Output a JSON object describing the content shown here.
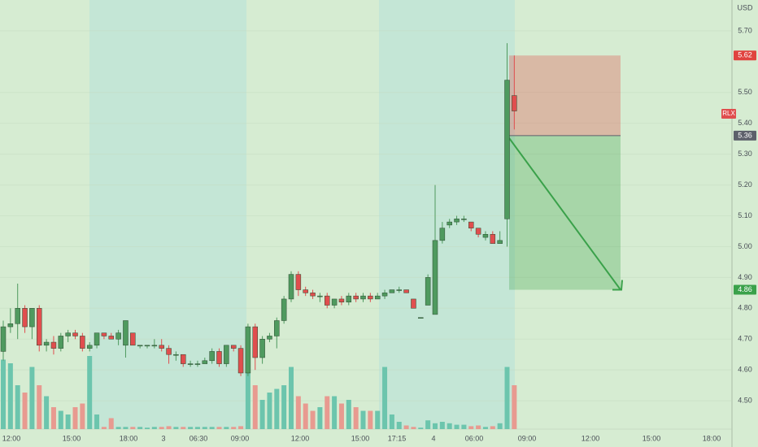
{
  "chart_data": {
    "type": "candlestick",
    "currency": "USD",
    "symbol": "RLX",
    "ylim": [
      4.35,
      5.8
    ],
    "yticks": [
      {
        "value": 4.5,
        "label": "4.50"
      },
      {
        "value": 4.6,
        "label": "4.60"
      },
      {
        "value": 4.7,
        "label": "4.70"
      },
      {
        "value": 4.8,
        "label": "4.80"
      },
      {
        "value": 4.9,
        "label": "4.90"
      },
      {
        "value": 5.0,
        "label": "5.00"
      },
      {
        "value": 5.1,
        "label": "5.10"
      },
      {
        "value": 5.2,
        "label": "5.20"
      },
      {
        "value": 5.3,
        "label": "5.30"
      },
      {
        "value": 5.4,
        "label": "5.40"
      },
      {
        "value": 5.5,
        "label": "5.50"
      },
      {
        "value": 5.7,
        "label": "5.70"
      }
    ],
    "grid": true,
    "up_color": "#4f9a5f",
    "down_color": "#e04e4e",
    "up_volume_color": "#6cc5ad",
    "down_volume_color": "#e89a90",
    "time_labels": [
      "12:00",
      "15:00",
      "18:00",
      "3",
      "06:30",
      "09:00",
      "12:00",
      "15:00",
      "17:15",
      "4",
      "06:00",
      "09:00",
      "12:00",
      "15:00",
      "18:00"
    ],
    "open": [
      4.66,
      4.74,
      4.75,
      4.8,
      4.74,
      4.8,
      4.68,
      4.69,
      4.67,
      4.71,
      4.72,
      4.71,
      4.67,
      4.68,
      4.72,
      4.71,
      4.7,
      4.68,
      4.72,
      4.68,
      4.68,
      4.68,
      4.68,
      4.67,
      4.65,
      4.65,
      4.62,
      4.62,
      4.62,
      4.63,
      4.66,
      4.62,
      4.68,
      4.67,
      4.59,
      4.74,
      4.64,
      4.7,
      4.71,
      4.76,
      4.83,
      4.91,
      4.86,
      4.85,
      4.84,
      4.84,
      4.81,
      4.83,
      4.82,
      4.84,
      4.83,
      4.84,
      4.83,
      4.84,
      4.85,
      4.86,
      4.86,
      4.83,
      4.77,
      4.81,
      4.78,
      5.02,
      5.07,
      5.08,
      5.09,
      5.08,
      5.06,
      5.03,
      5.04,
      5.01,
      5.09,
      5.49
    ],
    "high": [
      4.76,
      4.8,
      4.88,
      4.81,
      4.8,
      4.81,
      4.7,
      4.71,
      4.72,
      4.73,
      4.73,
      4.72,
      4.69,
      4.72,
      4.72,
      4.72,
      4.73,
      4.76,
      4.72,
      4.68,
      4.68,
      4.7,
      4.7,
      4.68,
      4.66,
      4.65,
      4.63,
      4.63,
      4.64,
      4.67,
      4.67,
      4.68,
      4.68,
      4.68,
      4.75,
      4.75,
      4.71,
      4.72,
      4.77,
      4.84,
      4.92,
      4.92,
      4.87,
      4.86,
      4.85,
      4.85,
      4.83,
      4.84,
      4.85,
      4.85,
      4.85,
      4.85,
      4.85,
      4.86,
      4.86,
      4.87,
      4.86,
      4.83,
      4.77,
      4.91,
      5.2,
      5.08,
      5.09,
      5.1,
      5.1,
      5.08,
      5.06,
      5.05,
      5.05,
      5.05,
      5.66,
      5.62
    ],
    "low": [
      4.63,
      4.72,
      4.7,
      4.72,
      4.7,
      4.66,
      4.66,
      4.65,
      4.66,
      4.69,
      4.7,
      4.66,
      4.66,
      4.67,
      4.7,
      4.7,
      4.68,
      4.64,
      4.68,
      4.67,
      4.67,
      4.67,
      4.66,
      4.62,
      4.63,
      4.61,
      4.61,
      4.61,
      4.62,
      4.62,
      4.61,
      4.61,
      4.66,
      4.58,
      4.58,
      4.6,
      4.62,
      4.69,
      4.67,
      4.75,
      4.82,
      4.84,
      4.84,
      4.83,
      4.82,
      4.8,
      4.8,
      4.81,
      4.81,
      4.82,
      4.82,
      4.82,
      4.83,
      4.83,
      4.85,
      4.85,
      4.85,
      4.8,
      4.77,
      4.81,
      4.78,
      5.01,
      5.06,
      5.07,
      5.08,
      5.05,
      5.03,
      5.02,
      5.01,
      5.01,
      5.0,
      5.38
    ],
    "close": [
      4.74,
      4.75,
      4.8,
      4.74,
      4.8,
      4.68,
      4.69,
      4.67,
      4.71,
      4.72,
      4.71,
      4.67,
      4.68,
      4.72,
      4.71,
      4.7,
      4.72,
      4.76,
      4.68,
      4.68,
      4.68,
      4.68,
      4.67,
      4.65,
      4.65,
      4.62,
      4.62,
      4.62,
      4.63,
      4.66,
      4.62,
      4.68,
      4.67,
      4.59,
      4.74,
      4.64,
      4.7,
      4.71,
      4.76,
      4.83,
      4.91,
      4.86,
      4.85,
      4.84,
      4.84,
      4.81,
      4.83,
      4.82,
      4.84,
      4.83,
      4.84,
      4.83,
      4.84,
      4.85,
      4.86,
      4.86,
      4.85,
      4.8,
      4.77,
      4.9,
      5.02,
      5.06,
      5.08,
      5.09,
      5.09,
      5.06,
      5.04,
      5.04,
      5.01,
      5.02,
      5.54,
      5.44
    ],
    "volume": [
      95,
      90,
      60,
      50,
      85,
      60,
      45,
      30,
      25,
      20,
      30,
      35,
      100,
      20,
      3,
      15,
      3,
      3,
      3,
      3,
      2,
      3,
      3,
      4,
      3,
      3,
      3,
      3,
      3,
      3,
      3,
      3,
      3,
      4,
      80,
      60,
      40,
      50,
      55,
      60,
      85,
      45,
      35,
      25,
      30,
      45,
      45,
      35,
      40,
      30,
      25,
      25,
      25,
      85,
      20,
      10,
      5,
      3,
      2,
      12,
      8,
      10,
      8,
      6,
      6,
      4,
      5,
      3,
      4,
      8,
      85,
      60
    ],
    "position": {
      "stop": 5.62,
      "entry": 5.36,
      "target": 4.86,
      "stop_color": "#e0433f",
      "entry_color": "#5d606b",
      "target_color": "#3aa14a"
    }
  }
}
